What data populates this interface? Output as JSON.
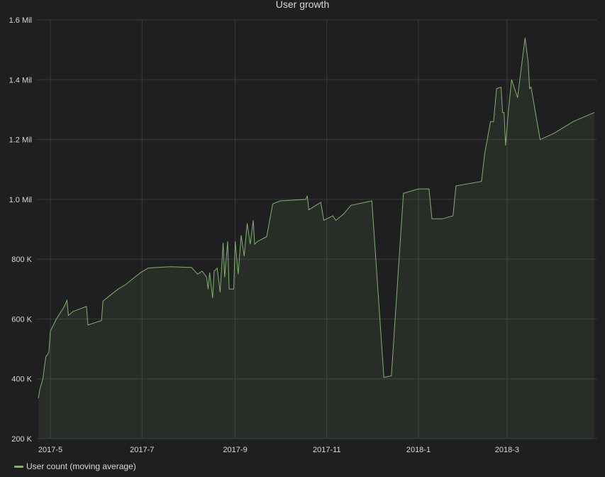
{
  "chart_data": {
    "type": "area",
    "title": "User growth",
    "xlabel": "",
    "ylabel": "",
    "x_range": [
      "2017-04-22",
      "2018-04-30"
    ],
    "ylim": [
      200000,
      1600000
    ],
    "y_ticks": [
      {
        "value": 200000,
        "label": "200 K"
      },
      {
        "value": 400000,
        "label": "400 K"
      },
      {
        "value": 600000,
        "label": "600 K"
      },
      {
        "value": 800000,
        "label": "800 K"
      },
      {
        "value": 1000000,
        "label": "1.0 Mil"
      },
      {
        "value": 1200000,
        "label": "1.2 Mil"
      },
      {
        "value": 1400000,
        "label": "1.4 Mil"
      },
      {
        "value": 1600000,
        "label": "1.6 Mil"
      }
    ],
    "x_ticks": [
      {
        "date": "2017-05-01",
        "label": "2017-5"
      },
      {
        "date": "2017-07-01",
        "label": "2017-7"
      },
      {
        "date": "2017-09-01",
        "label": "2017-9"
      },
      {
        "date": "2017-11-01",
        "label": "2017-11"
      },
      {
        "date": "2018-01-01",
        "label": "2018-1"
      },
      {
        "date": "2018-03-01",
        "label": "2018-3"
      }
    ],
    "grid": true,
    "legend_position": "bottom-left",
    "series": [
      {
        "name": "User count (moving average)",
        "color": "#7eb26d",
        "points": [
          [
            "2017-04-23",
            335000
          ],
          [
            "2017-04-24",
            365000
          ],
          [
            "2017-04-26",
            400000
          ],
          [
            "2017-04-27",
            440000
          ],
          [
            "2017-04-28",
            475000
          ],
          [
            "2017-04-29",
            480000
          ],
          [
            "2017-04-30",
            490000
          ],
          [
            "2017-05-01",
            560000
          ],
          [
            "2017-05-05",
            600000
          ],
          [
            "2017-05-10",
            640000
          ],
          [
            "2017-05-12",
            662000
          ],
          [
            "2017-05-13",
            612000
          ],
          [
            "2017-05-16",
            625000
          ],
          [
            "2017-05-25",
            642000
          ],
          [
            "2017-05-26",
            580000
          ],
          [
            "2017-06-04",
            595000
          ],
          [
            "2017-06-05",
            660000
          ],
          [
            "2017-06-10",
            680000
          ],
          [
            "2017-06-15",
            700000
          ],
          [
            "2017-06-20",
            715000
          ],
          [
            "2017-06-25",
            735000
          ],
          [
            "2017-06-30",
            755000
          ],
          [
            "2017-07-05",
            770000
          ],
          [
            "2017-07-10",
            772000
          ],
          [
            "2017-07-20",
            775000
          ],
          [
            "2017-08-03",
            772000
          ],
          [
            "2017-08-07",
            750000
          ],
          [
            "2017-08-10",
            760000
          ],
          [
            "2017-08-13",
            740000
          ],
          [
            "2017-08-14",
            700000
          ],
          [
            "2017-08-15",
            755000
          ],
          [
            "2017-08-17",
            670000
          ],
          [
            "2017-08-18",
            760000
          ],
          [
            "2017-08-20",
            770000
          ],
          [
            "2017-08-22",
            690000
          ],
          [
            "2017-08-24",
            855000
          ],
          [
            "2017-08-25",
            740000
          ],
          [
            "2017-08-27",
            860000
          ],
          [
            "2017-08-28",
            700000
          ],
          [
            "2017-08-31",
            700000
          ],
          [
            "2017-09-01",
            860000
          ],
          [
            "2017-09-03",
            750000
          ],
          [
            "2017-09-05",
            880000
          ],
          [
            "2017-09-07",
            810000
          ],
          [
            "2017-09-09",
            920000
          ],
          [
            "2017-09-11",
            850000
          ],
          [
            "2017-09-13",
            930000
          ],
          [
            "2017-09-14",
            850000
          ],
          [
            "2017-09-16",
            860000
          ],
          [
            "2017-09-22",
            875000
          ],
          [
            "2017-09-26",
            985000
          ],
          [
            "2017-10-01",
            995000
          ],
          [
            "2017-10-18",
            1000000
          ],
          [
            "2017-10-19",
            1012000
          ],
          [
            "2017-10-20",
            965000
          ],
          [
            "2017-10-28",
            990000
          ],
          [
            "2017-10-30",
            930000
          ],
          [
            "2017-11-05",
            945000
          ],
          [
            "2017-11-07",
            930000
          ],
          [
            "2017-11-12",
            950000
          ],
          [
            "2017-11-17",
            980000
          ],
          [
            "2017-12-01",
            995000
          ],
          [
            "2017-12-09",
            405000
          ],
          [
            "2017-12-14",
            410000
          ],
          [
            "2017-12-22",
            1020000
          ],
          [
            "2018-01-01",
            1035000
          ],
          [
            "2018-01-08",
            1035000
          ],
          [
            "2018-01-10",
            935000
          ],
          [
            "2018-01-17",
            935000
          ],
          [
            "2018-01-24",
            945000
          ],
          [
            "2018-01-26",
            1045000
          ],
          [
            "2018-02-12",
            1060000
          ],
          [
            "2018-02-14",
            1150000
          ],
          [
            "2018-02-18",
            1260000
          ],
          [
            "2018-02-20",
            1260000
          ],
          [
            "2018-02-22",
            1370000
          ],
          [
            "2018-02-25",
            1375000
          ],
          [
            "2018-02-26",
            1290000
          ],
          [
            "2018-02-27",
            1290000
          ],
          [
            "2018-02-28",
            1180000
          ],
          [
            "2018-03-02",
            1300000
          ],
          [
            "2018-03-04",
            1400000
          ],
          [
            "2018-03-08",
            1340000
          ],
          [
            "2018-03-13",
            1540000
          ],
          [
            "2018-03-15",
            1460000
          ],
          [
            "2018-03-16",
            1370000
          ],
          [
            "2018-03-17",
            1375000
          ],
          [
            "2018-03-23",
            1200000
          ],
          [
            "2018-04-01",
            1220000
          ],
          [
            "2018-04-14",
            1260000
          ],
          [
            "2018-04-28",
            1290000
          ]
        ]
      }
    ]
  }
}
